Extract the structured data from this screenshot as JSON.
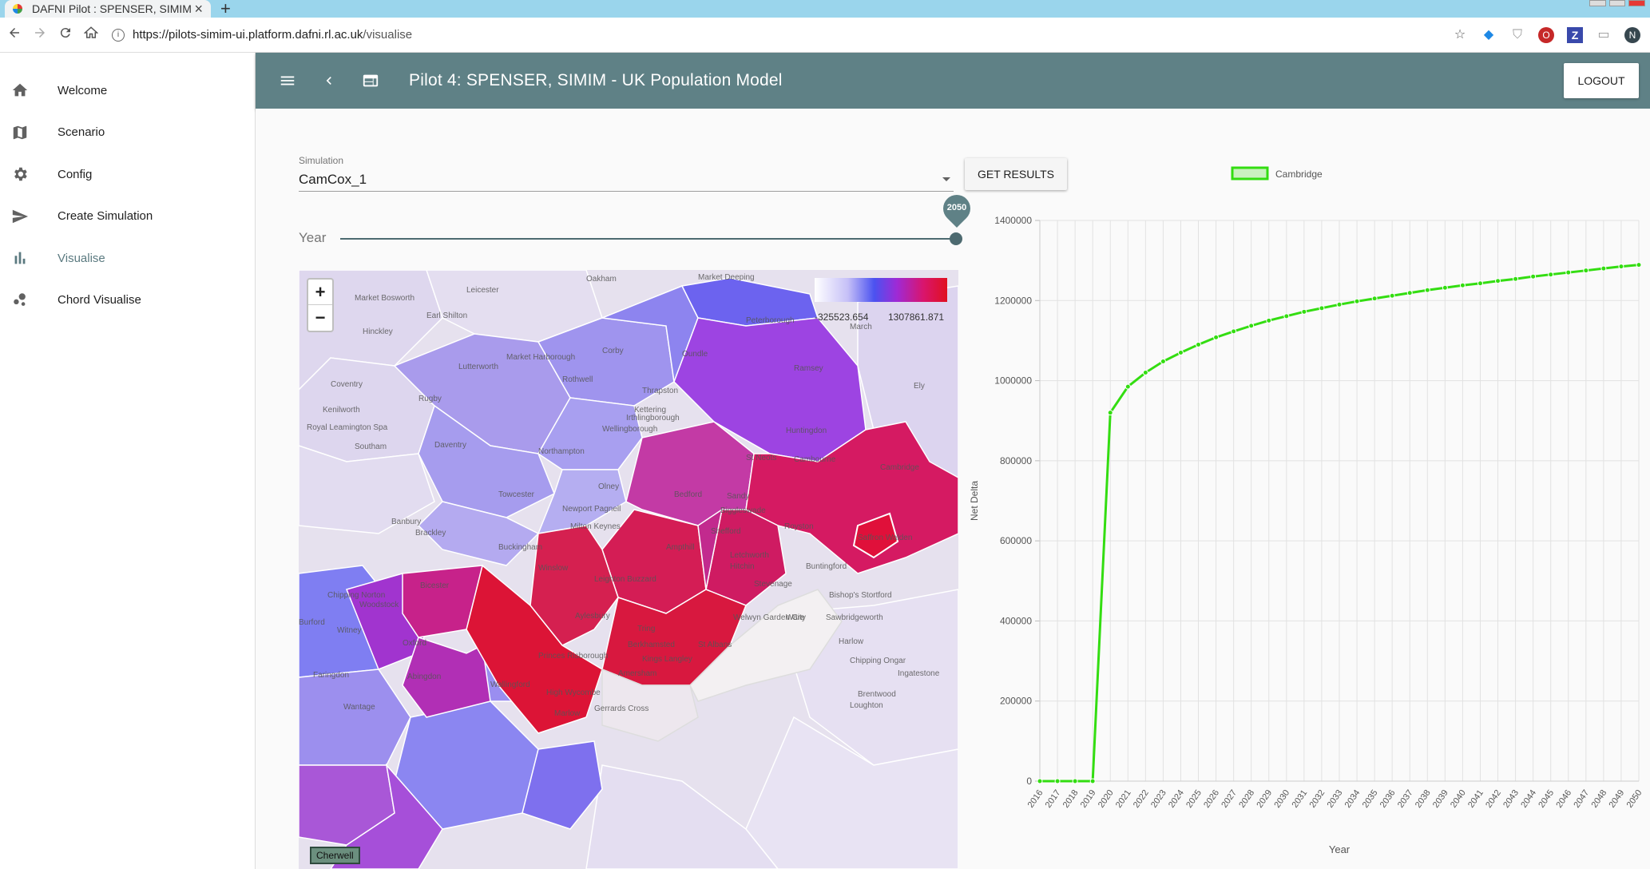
{
  "browser": {
    "tab_title": "DAFNI Pilot : SPENSER, SIMIM",
    "tab_close": "×",
    "new_tab": "+",
    "url_host": "https://pilots-simim-ui.platform.dafni.rl.ac.uk",
    "url_path": "/visualise",
    "info": "i",
    "ext_red": "O",
    "ext_z": "Z",
    "avatar": "N"
  },
  "sidebar": {
    "items": [
      {
        "label": "Welcome",
        "icon": "home-icon"
      },
      {
        "label": "Scenario",
        "icon": "map-icon"
      },
      {
        "label": "Config",
        "icon": "gear-icon"
      },
      {
        "label": "Create Simulation",
        "icon": "send-icon"
      },
      {
        "label": "Visualise",
        "icon": "bar-chart-icon"
      },
      {
        "label": "Chord Visualise",
        "icon": "bubble-chart-icon"
      }
    ],
    "active_index": 4
  },
  "toolbar": {
    "title": "Pilot 4: SPENSER, SIMIM - UK Population Model",
    "logout": "LOGOUT"
  },
  "simulation": {
    "label": "Simulation",
    "value": "CamCox_1",
    "get_results": "GET RESULTS"
  },
  "year_slider": {
    "label": "Year",
    "value": "2050",
    "fraction": 1.0
  },
  "map": {
    "zoom_in": "+",
    "zoom_out": "−",
    "legend_min": "-325523.654",
    "legend_max": "1307861.871",
    "selected_area": "Cherwell",
    "towns": [
      "Leicester",
      "Oakham",
      "Market Deeping",
      "Market Bosworth",
      "Earl Shilton",
      "Peterborough",
      "March",
      "Hinckley",
      "Corby",
      "Oundle",
      "Ramsey",
      "Lutterworth",
      "Market Harborough",
      "Rothwell",
      "Thrapston",
      "Coventry",
      "Rugby",
      "Kettering",
      "Huntingdon",
      "Ely",
      "Kenilworth",
      "Irthlingborough",
      "Royal Leamington Spa",
      "Daventry",
      "Wellingborough",
      "Southam",
      "Northampton",
      "St Neots",
      "Cambourne",
      "Cambridge",
      "Towcester",
      "Olney",
      "Bedford",
      "Sandy",
      "Newport Pagnell",
      "Biggleswade",
      "Banbury",
      "Milton Keynes",
      "Shefford",
      "Royston",
      "Brackley",
      "Ampthill",
      "Saffron Walden",
      "Buckingham",
      "Letchworth",
      "Buntingford",
      "Winslow",
      "Leighton Buzzard",
      "Hitchin",
      "Stevenage",
      "Chipping Norton",
      "Bicester",
      "Woodstock",
      "Aylesbury",
      "Welwyn Garden City",
      "Bishop's Stortford",
      "Burford",
      "Witney",
      "Tring",
      "Ware",
      "Sawbridgeworth",
      "Oxford",
      "Berkhamsted",
      "St Albans",
      "Princes Risborough",
      "Harlow",
      "Faringdon",
      "Abingdon",
      "Wallingford",
      "Kings Langley",
      "Chipping Ongar",
      "Wantage",
      "High Wycombe",
      "Amersham",
      "Gerrards Cross",
      "Marlow",
      "Loughton",
      "Brentwood",
      "Ingatestone"
    ]
  },
  "chart_data": {
    "type": "line",
    "series": [
      {
        "name": "Cambridge",
        "color": "#33dd11",
        "values": [
          0,
          0,
          0,
          0,
          920000,
          985000,
          1020000,
          1048000,
          1070000,
          1090000,
          1108000,
          1123000,
          1137000,
          1150000,
          1161000,
          1172000,
          1181000,
          1190000,
          1198000,
          1205000,
          1212000,
          1219000,
          1226000,
          1232000,
          1238000,
          1243000,
          1249000,
          1254000,
          1260000,
          1265000,
          1270000,
          1275000,
          1280000,
          1285000,
          1289000
        ]
      }
    ],
    "x": [
      "2016",
      "2017",
      "2018",
      "2019",
      "2020",
      "2021",
      "2022",
      "2023",
      "2024",
      "2025",
      "2026",
      "2027",
      "2028",
      "2029",
      "2030",
      "2031",
      "2032",
      "2033",
      "2034",
      "2035",
      "2036",
      "2037",
      "2038",
      "2039",
      "2040",
      "2041",
      "2042",
      "2043",
      "2044",
      "2045",
      "2046",
      "2047",
      "2048",
      "2049",
      "2050"
    ],
    "xlabel": "Year",
    "ylabel": "Net Delta",
    "ylim": [
      0,
      1400000
    ],
    "yticks": [
      0,
      200000,
      400000,
      600000,
      800000,
      1000000,
      1200000,
      1400000
    ],
    "grid": true,
    "legend": "top"
  }
}
